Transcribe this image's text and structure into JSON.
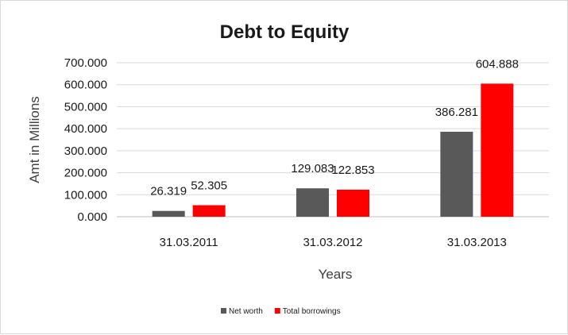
{
  "chart_data": {
    "type": "bar",
    "title": "Debt to Equity",
    "xlabel": "Years",
    "ylabel": "Amt in Millions",
    "categories": [
      "31.03.2011",
      "31.03.2012",
      "31.03.2013"
    ],
    "series": [
      {
        "name": "Net worth",
        "color": "#595959",
        "values": [
          26.319,
          129.083,
          386.281
        ],
        "labels": [
          "26.319",
          "129.083",
          "386.281"
        ]
      },
      {
        "name": "Total borrowings",
        "color": "#ff0000",
        "values": [
          52.305,
          122.853,
          604.888
        ],
        "labels": [
          "52.305",
          "122.853",
          "604.888"
        ]
      }
    ],
    "ylim": [
      0,
      700
    ],
    "yticks": [
      "0.000",
      "100.000",
      "200.000",
      "300.000",
      "400.000",
      "500.000",
      "600.000",
      "700.000"
    ],
    "grid": true,
    "legend": "bottom"
  }
}
